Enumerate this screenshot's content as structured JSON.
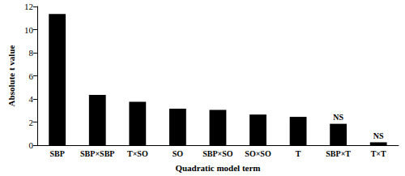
{
  "chart_data": {
    "type": "bar",
    "x_label": "Quadratic model term",
    "y_label": "Absolute t value",
    "categories": [
      "SBP",
      "SBP×SBP",
      "T×SO",
      "SO",
      "SBP×SO",
      "SO×SO",
      "T",
      "SBP×T",
      "T×T"
    ],
    "values": [
      11.35,
      4.35,
      3.75,
      3.15,
      3.05,
      2.65,
      2.45,
      1.85,
      0.25
    ],
    "color": "#000000",
    "ylim": [
      0,
      12
    ],
    "yticks": [
      0,
      2,
      4,
      6,
      8,
      10,
      12
    ],
    "grid": false,
    "annotations": [
      {
        "category": "SBP×T",
        "text": "NS"
      },
      {
        "category": "T×T",
        "text": "NS"
      }
    ]
  }
}
